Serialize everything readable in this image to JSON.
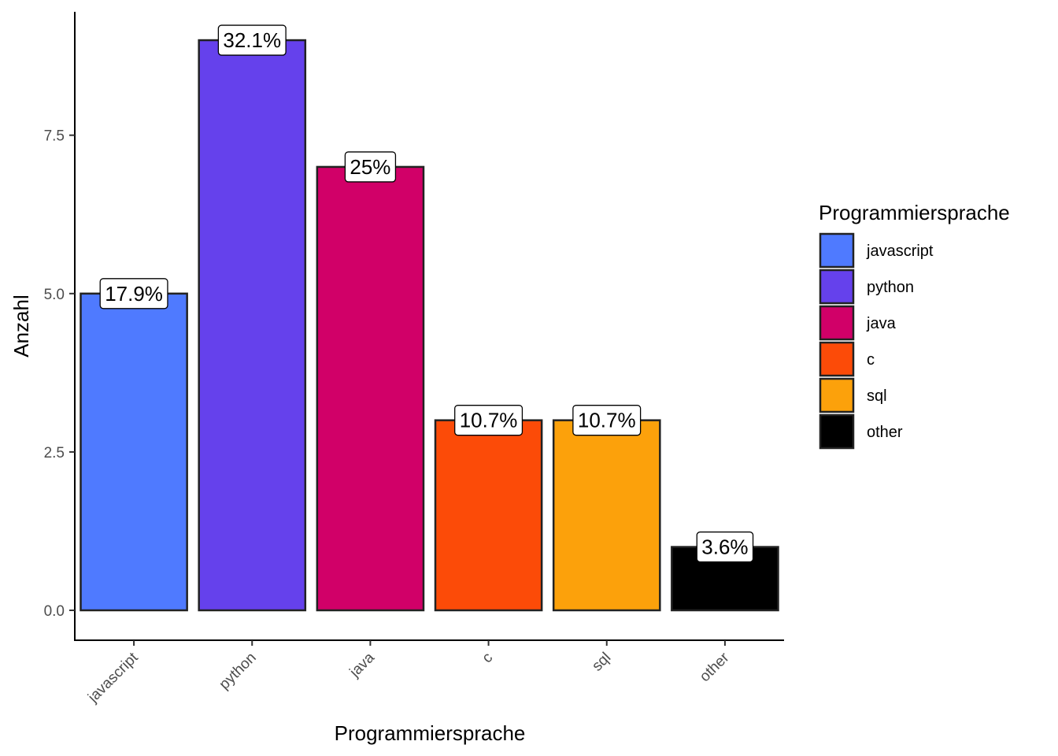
{
  "chart_data": {
    "type": "bar",
    "categories": [
      "javascript",
      "python",
      "java",
      "c",
      "sql",
      "other"
    ],
    "values": [
      5,
      9,
      7,
      3,
      3,
      1
    ],
    "data_labels": [
      "17.9%",
      "32.1%",
      "25%",
      "10.7%",
      "10.7%",
      "3.6%"
    ],
    "colors": [
      "#4F7AFF",
      "#6541EC",
      "#D10068",
      "#FC4B08",
      "#FCA10B",
      "#000000"
    ],
    "xlabel": "Programmiersprache",
    "ylabel": "Anzahl",
    "ylim": [
      0,
      9.45
    ],
    "yticks": [
      0,
      2.5,
      5,
      7.5
    ],
    "ytick_labels": [
      "0.0",
      "2.5",
      "5.0",
      "7.5"
    ],
    "legend": {
      "title": "Programmiersprache",
      "position": "right",
      "entries": [
        "javascript",
        "python",
        "java",
        "c",
        "sql",
        "other"
      ]
    },
    "grid": false
  }
}
